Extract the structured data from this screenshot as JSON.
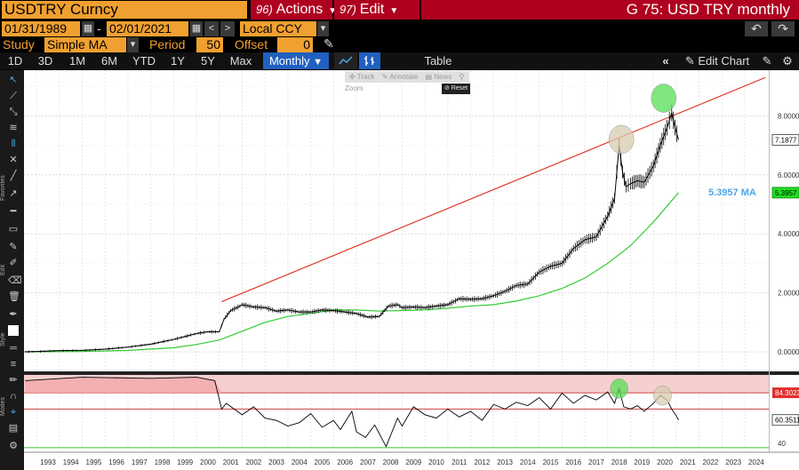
{
  "header": {
    "ticker": "USDTRY Curncy",
    "actions_num": "96)",
    "actions_label": "Actions",
    "edit_num": "97)",
    "edit_label": "Edit",
    "title": "G 75: USD TRY monthly"
  },
  "range": {
    "start": "01/31/1989",
    "end": "02/01/2021",
    "dash": "-",
    "currency": "Local CCY"
  },
  "study": {
    "label": "Study",
    "value": "Simple MA",
    "period_label": "Period",
    "period_value": "50",
    "offset_label": "Offset",
    "offset_value": "0"
  },
  "timeframes": [
    "1D",
    "3D",
    "1M",
    "6M",
    "YTD",
    "1Y",
    "5Y",
    "Max"
  ],
  "frequency": "Monthly",
  "table_label": "Table",
  "edit_chart_label": "Edit Chart",
  "toolbar_tips": {
    "track": "Track",
    "annotate": "Annotate",
    "news": "News",
    "zoom": "Zoom",
    "reset": "Reset"
  },
  "left_toolbar_labels": {
    "favorites": "Favorites",
    "edit": "Edit",
    "style": "Style",
    "modes": "Modes"
  },
  "colors": {
    "accent_orange": "#f0a030",
    "header_red": "#b00020",
    "active_blue": "#2060c0",
    "price_line": "#000000",
    "ma_line": "#33cc33",
    "trend_line": "#e03020",
    "ma_label": "#4aa8e8"
  },
  "chart_data": [
    {
      "type": "line",
      "title": "",
      "ylim": [
        -0.5,
        9.5
      ],
      "y_ticks": [
        "0.0000",
        "2.0000",
        "4.0000",
        "6.0000",
        "8.0000"
      ],
      "last_price": "7.1877",
      "ma_value": "5.3957",
      "ma_label": "5.3957 MA",
      "trend_line": {
        "x": [
          2001.1,
          2024.9
        ],
        "y": [
          1.7,
          9.3
        ]
      },
      "circles": [
        {
          "x": 2018.6,
          "y": 7.2,
          "color": "#d8cbb0"
        },
        {
          "x": 2020.45,
          "y": 8.6,
          "color": "#55dd55"
        }
      ],
      "series": [
        {
          "x": [
            1992.5,
            1993,
            1994,
            1995,
            1996,
            1997,
            1998,
            1999,
            2000,
            2000.5,
            2001,
            2001.2,
            2001.5,
            2001.9,
            2002,
            2002.5,
            2003,
            2003.5,
            2004,
            2004.5,
            2005,
            2005.5,
            2006,
            2006.5,
            2007,
            2007.5,
            2008,
            2008.4,
            2008.8,
            2009,
            2009.5,
            2010,
            2010.5,
            2011,
            2011.5,
            2012,
            2012.5,
            2013,
            2013.5,
            2014,
            2014.5,
            2015,
            2015.5,
            2016,
            2016.5,
            2017,
            2017.5,
            2018,
            2018.3,
            2018.5,
            2018.65,
            2018.8,
            2019,
            2019.3,
            2019.6,
            2020,
            2020.3,
            2020.6,
            2020.8,
            2020.95,
            2021.1
          ],
          "y": [
            0.001,
            0.01,
            0.04,
            0.05,
            0.09,
            0.16,
            0.26,
            0.42,
            0.62,
            0.68,
            0.68,
            1.1,
            1.4,
            1.55,
            1.6,
            1.52,
            1.5,
            1.38,
            1.42,
            1.35,
            1.35,
            1.42,
            1.4,
            1.35,
            1.3,
            1.18,
            1.2,
            1.55,
            1.6,
            1.5,
            1.52,
            1.5,
            1.55,
            1.6,
            1.8,
            1.78,
            1.8,
            1.9,
            2.05,
            2.25,
            2.3,
            2.7,
            2.9,
            3.0,
            3.5,
            3.8,
            3.9,
            4.6,
            5.2,
            7.0,
            6.1,
            5.6,
            5.7,
            5.8,
            5.75,
            6.3,
            7.0,
            7.6,
            8.1,
            7.6,
            7.19
          ]
        },
        {
          "x": [
            1992.5,
            1995,
            1997,
            1999,
            2000,
            2001,
            2002,
            2003,
            2004,
            2005,
            2006,
            2007,
            2008,
            2009,
            2010,
            2011,
            2012,
            2013,
            2014,
            2015,
            2016,
            2017,
            2018,
            2019,
            2020,
            2021.1
          ],
          "y": [
            0.0,
            0.01,
            0.05,
            0.14,
            0.25,
            0.4,
            0.7,
            1.0,
            1.2,
            1.3,
            1.42,
            1.42,
            1.38,
            1.4,
            1.42,
            1.48,
            1.55,
            1.6,
            1.72,
            1.9,
            2.15,
            2.5,
            3.0,
            3.6,
            4.4,
            5.4
          ]
        }
      ],
      "x_ticks": [
        "1993",
        "1994",
        "1995",
        "1996",
        "1997",
        "1998",
        "1999",
        "2000",
        "2001",
        "2002",
        "2003",
        "2004",
        "2005",
        "2006",
        "2007",
        "2008",
        "2009",
        "2010",
        "2011",
        "2012",
        "2013",
        "2014",
        "2015",
        "2016",
        "2017",
        "2018",
        "2019",
        "2020",
        "2021",
        "2022",
        "2023",
        "2024"
      ]
    },
    {
      "type": "line",
      "title": "",
      "ylim": [
        32,
        100
      ],
      "y_ticks": [
        "40"
      ],
      "upper_band": "84.3023",
      "last_value": "60.3511",
      "upper_band_value": 84.3,
      "lower_band_value": 70,
      "circles": [
        {
          "x": 2018.5,
          "y": 88,
          "color": "#55dd55"
        },
        {
          "x": 2020.4,
          "y": 82,
          "color": "#d8cbb0"
        }
      ],
      "series": [
        {
          "x": [
            1992.5,
            1995,
            1998,
            2000,
            2000.8,
            2001.1,
            2001.3,
            2002,
            2002.5,
            2003,
            2003.5,
            2004,
            2004.5,
            2005,
            2005.5,
            2006,
            2006.3,
            2006.8,
            2007,
            2007.4,
            2007.8,
            2008.3,
            2008.8,
            2009,
            2009.5,
            2010,
            2010.5,
            2011,
            2011.5,
            2012,
            2012.5,
            2013,
            2013.5,
            2014,
            2014.5,
            2015,
            2015.5,
            2016,
            2016.5,
            2017,
            2017.5,
            2018,
            2018.3,
            2018.5,
            2018.7,
            2019,
            2019.3,
            2019.6,
            2020,
            2020.3,
            2020.6,
            2020.8,
            2021.0,
            2021.1
          ],
          "y": [
            95,
            98,
            97,
            98,
            95,
            70,
            75,
            65,
            72,
            62,
            60,
            55,
            58,
            66,
            54,
            60,
            52,
            68,
            50,
            45,
            56,
            37,
            62,
            55,
            72,
            65,
            62,
            70,
            63,
            68,
            60,
            74,
            70,
            76,
            73,
            80,
            70,
            84,
            75,
            82,
            78,
            85,
            75,
            88,
            72,
            70,
            73,
            68,
            75,
            82,
            78,
            70,
            64,
            60.35
          ]
        }
      ]
    }
  ]
}
